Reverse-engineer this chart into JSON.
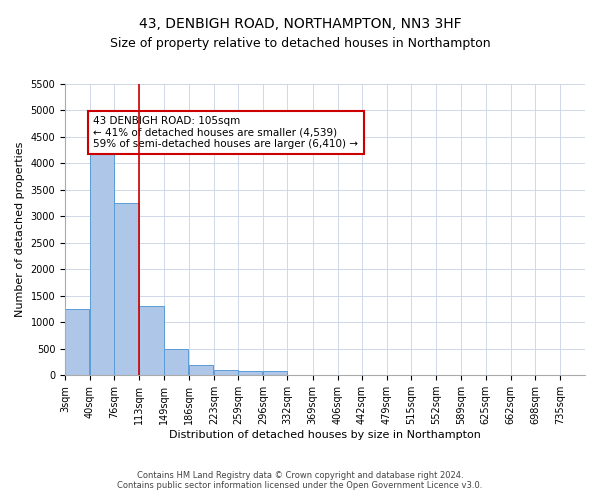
{
  "title": "43, DENBIGH ROAD, NORTHAMPTON, NN3 3HF",
  "subtitle": "Size of property relative to detached houses in Northampton",
  "xlabel": "Distribution of detached houses by size in Northampton",
  "ylabel": "Number of detached properties",
  "bar_edges": [
    3,
    40,
    76,
    113,
    149,
    186,
    223,
    259,
    296,
    332,
    369,
    406,
    442,
    479,
    515,
    552,
    589,
    625,
    662,
    698,
    735
  ],
  "bar_heights": [
    1250,
    4300,
    3250,
    1300,
    500,
    200,
    100,
    75,
    75,
    0,
    0,
    0,
    0,
    0,
    0,
    0,
    0,
    0,
    0,
    0
  ],
  "bar_color": "#aec6e8",
  "bar_edgecolor": "#5b9bd5",
  "grid_color": "#d0d8e8",
  "vline_x": 113,
  "vline_color": "#cc0000",
  "ylim": [
    0,
    5500
  ],
  "yticks": [
    0,
    500,
    1000,
    1500,
    2000,
    2500,
    3000,
    3500,
    4000,
    4500,
    5000,
    5500
  ],
  "annotation_text": "43 DENBIGH ROAD: 105sqm\n← 41% of detached houses are smaller (4,539)\n59% of semi-detached houses are larger (6,410) →",
  "annotation_box_color": "#ffffff",
  "annotation_box_edgecolor": "#cc0000",
  "footer_line1": "Contains HM Land Registry data © Crown copyright and database right 2024.",
  "footer_line2": "Contains public sector information licensed under the Open Government Licence v3.0.",
  "tick_labels": [
    "3sqm",
    "40sqm",
    "76sqm",
    "113sqm",
    "149sqm",
    "186sqm",
    "223sqm",
    "259sqm",
    "296sqm",
    "332sqm",
    "369sqm",
    "406sqm",
    "442sqm",
    "479sqm",
    "515sqm",
    "552sqm",
    "589sqm",
    "625sqm",
    "662sqm",
    "698sqm",
    "735sqm"
  ],
  "bg_color": "#ffffff",
  "title_fontsize": 10,
  "subtitle_fontsize": 9,
  "axis_label_fontsize": 8,
  "tick_fontsize": 7,
  "footer_fontsize": 6,
  "annotation_fontsize": 7.5
}
